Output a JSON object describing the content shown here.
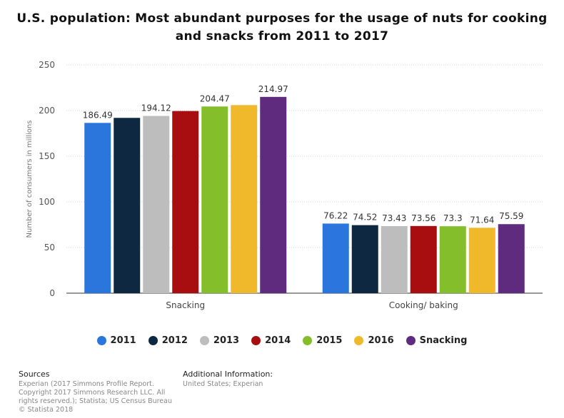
{
  "chart_data": {
    "type": "bar",
    "title": "U.S. population: Most abundant purposes for the usage of nuts for cooking and snacks from 2011 to 2017",
    "xlabel": "",
    "ylabel": "Number of consumers in millions",
    "ylim": [
      0,
      250
    ],
    "yticks": [
      0,
      50,
      100,
      150,
      200,
      250
    ],
    "grid": true,
    "legend_position": "bottom",
    "categories": [
      "Snacking",
      "Cooking/ baking"
    ],
    "series": [
      {
        "name": "2011",
        "color": "#2a76dd",
        "values": [
          186.49,
          76.22
        ],
        "labels": [
          "186.49",
          "76.22"
        ]
      },
      {
        "name": "2012",
        "color": "#0f2841",
        "values": [
          192,
          74.52
        ],
        "labels": [
          "",
          "74.52"
        ]
      },
      {
        "name": "2013",
        "color": "#bdbdbd",
        "values": [
          194.12,
          73.43
        ],
        "labels": [
          "194.12",
          "73.43"
        ]
      },
      {
        "name": "2014",
        "color": "#a80d0f",
        "values": [
          199.5,
          73.56
        ],
        "labels": [
          "",
          "73.56"
        ]
      },
      {
        "name": "2015",
        "color": "#84be2a",
        "values": [
          204.47,
          73.3
        ],
        "labels": [
          "204.47",
          "73.3"
        ]
      },
      {
        "name": "2016",
        "color": "#f0b82b",
        "values": [
          206,
          71.64
        ],
        "labels": [
          "",
          "71.64"
        ]
      },
      {
        "name": "Snacking",
        "color": "#5f2b7e",
        "values": [
          214.97,
          75.59
        ],
        "labels": [
          "214.97",
          "75.59"
        ]
      }
    ]
  },
  "footer": {
    "sources_heading": "Sources",
    "sources_lines": [
      "Experian (2017 Simmons Profile Report.",
      "Copyright 2017 Simmons Research LLC. All",
      "rights reserved.); Statista; US Census Bureau",
      "© Statista 2018"
    ],
    "additional_heading": "Additional Information:",
    "additional_text": "United States; Experian"
  }
}
